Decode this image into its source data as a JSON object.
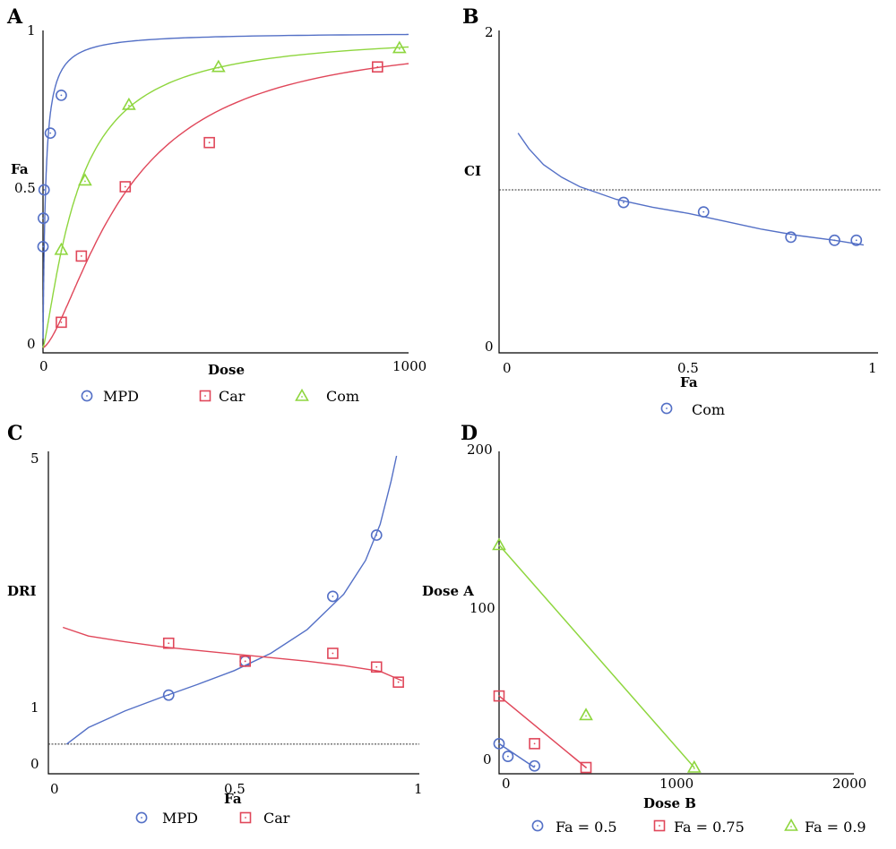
{
  "colors": {
    "blue": "#5470c6",
    "red": "#e0475a",
    "green": "#8ed63e",
    "axis": "#000000"
  },
  "chart_data": [
    {
      "panel": "A",
      "type": "line",
      "xlabel": "Dose",
      "ylabel": "Fa",
      "xlim": [
        0,
        1000
      ],
      "ylim": [
        0,
        1
      ],
      "xticks": [
        "0",
        "1000"
      ],
      "yticks": [
        "0",
        "0.5",
        "1"
      ],
      "series": [
        {
          "name": "MPD",
          "color": "#5470c6",
          "marker": "circle",
          "points": [
            [
              0,
              0.32
            ],
            [
              1,
              0.41
            ],
            [
              3,
              0.5
            ],
            [
              20,
              0.68
            ],
            [
              50,
              0.8
            ]
          ],
          "curve": {
            "dm": 7,
            "m": 1
          }
        },
        {
          "name": "Car",
          "color": "#e0475a",
          "marker": "square",
          "points": [
            [
              50,
              0.08
            ],
            [
              105,
              0.29
            ],
            [
              225,
              0.51
            ],
            [
              455,
              0.65
            ],
            [
              915,
              0.89
            ]
          ],
          "curve": {
            "dm": 230,
            "m": 1.5
          }
        },
        {
          "name": "Com",
          "color": "#8ed63e",
          "marker": "triangle",
          "points": [
            [
              50,
              0.31
            ],
            [
              115,
              0.53
            ],
            [
              235,
              0.77
            ],
            [
              480,
              0.89
            ],
            [
              975,
              0.95
            ]
          ],
          "curve": {
            "dm": 95,
            "m": 1.28
          }
        }
      ]
    },
    {
      "panel": "B",
      "type": "scatter",
      "xlabel": "Fa",
      "ylabel": "CI",
      "xlim": [
        0,
        1
      ],
      "ylim": [
        0,
        2
      ],
      "xticks": [
        "0",
        "0.5",
        "1"
      ],
      "yticks": [
        "0",
        "2"
      ],
      "reference_line": 1,
      "series": [
        {
          "name": "Com",
          "color": "#5470c6",
          "marker": "circle",
          "points": [
            [
              0.32,
              0.92
            ],
            [
              0.54,
              0.86
            ],
            [
              0.78,
              0.7
            ],
            [
              0.9,
              0.68
            ],
            [
              0.96,
              0.68
            ]
          ]
        }
      ],
      "fit_curve": [
        [
          0.03,
          1.36
        ],
        [
          0.06,
          1.26
        ],
        [
          0.1,
          1.16
        ],
        [
          0.15,
          1.08
        ],
        [
          0.2,
          1.02
        ],
        [
          0.25,
          0.98
        ],
        [
          0.3,
          0.94
        ],
        [
          0.4,
          0.89
        ],
        [
          0.5,
          0.85
        ],
        [
          0.6,
          0.8
        ],
        [
          0.7,
          0.75
        ],
        [
          0.8,
          0.71
        ],
        [
          0.9,
          0.68
        ],
        [
          0.98,
          0.65
        ]
      ]
    },
    {
      "panel": "C",
      "type": "line",
      "xlabel": "Fa",
      "ylabel": "DRI",
      "xlim": [
        0,
        1
      ],
      "ylim": [
        0.75,
        5
      ],
      "xticks": [
        "0",
        "0.5",
        "1"
      ],
      "yticks": [
        "0",
        "1",
        "5"
      ],
      "reference_line": 1,
      "series": [
        {
          "name": "MPD",
          "color": "#5470c6",
          "marker": "circle",
          "points": [
            [
              0.32,
              1.68
            ],
            [
              0.53,
              2.15
            ],
            [
              0.77,
              3.05
            ],
            [
              0.89,
              3.9
            ]
          ],
          "fit": [
            [
              0.04,
              1.0
            ],
            [
              0.1,
              1.23
            ],
            [
              0.2,
              1.46
            ],
            [
              0.3,
              1.65
            ],
            [
              0.4,
              1.83
            ],
            [
              0.5,
              2.02
            ],
            [
              0.6,
              2.26
            ],
            [
              0.7,
              2.59
            ],
            [
              0.8,
              3.08
            ],
            [
              0.86,
              3.55
            ],
            [
              0.9,
              4.05
            ],
            [
              0.93,
              4.65
            ],
            [
              0.945,
              5.0
            ]
          ]
        },
        {
          "name": "Car",
          "color": "#e0475a",
          "marker": "square",
          "points": [
            [
              0.32,
              2.4
            ],
            [
              0.53,
              2.15
            ],
            [
              0.77,
              2.26
            ],
            [
              0.89,
              2.07
            ],
            [
              0.95,
              1.86
            ]
          ],
          "fit": [
            [
              0.03,
              2.62
            ],
            [
              0.1,
              2.5
            ],
            [
              0.2,
              2.42
            ],
            [
              0.3,
              2.35
            ],
            [
              0.4,
              2.3
            ],
            [
              0.5,
              2.25
            ],
            [
              0.6,
              2.2
            ],
            [
              0.7,
              2.15
            ],
            [
              0.8,
              2.09
            ],
            [
              0.9,
              2.01
            ],
            [
              0.96,
              1.88
            ]
          ]
        }
      ]
    },
    {
      "panel": "D",
      "type": "line",
      "xlabel": "Dose B",
      "ylabel": "Dose A",
      "xlim": [
        0,
        2000
      ],
      "ylim": [
        0,
        200
      ],
      "xticks": [
        "0",
        "1000",
        "2000"
      ],
      "yticks": [
        "0",
        "100",
        "200"
      ],
      "series": [
        {
          "name": "Fa = 0.5",
          "color": "#5470c6",
          "marker": "circle",
          "points": [
            [
              0,
              15
            ],
            [
              50,
              7
            ],
            [
              200,
              1
            ]
          ],
          "line": [
            [
              0,
              15
            ],
            [
              200,
              0
            ]
          ]
        },
        {
          "name": "Fa = 0.75",
          "color": "#e0475a",
          "marker": "square",
          "points": [
            [
              0,
              45
            ],
            [
              200,
              15
            ],
            [
              490,
              0
            ]
          ],
          "line": [
            [
              0,
              45
            ],
            [
              490,
              0
            ]
          ]
        },
        {
          "name": "Fa = 0.9",
          "color": "#8ed63e",
          "marker": "triangle",
          "points": [
            [
              0,
              140
            ],
            [
              490,
              33
            ],
            [
              1100,
              0
            ]
          ],
          "line": [
            [
              0,
              140
            ],
            [
              1100,
              0
            ]
          ]
        }
      ]
    }
  ]
}
